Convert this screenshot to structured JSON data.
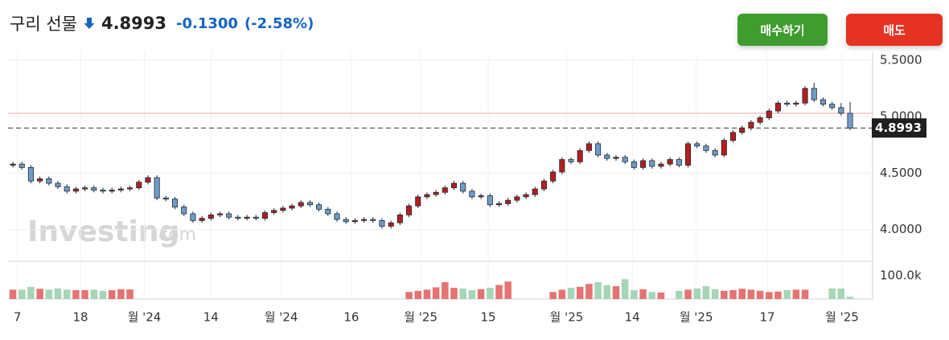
{
  "header": {
    "title": "구리 선물",
    "change": "-0.1300",
    "change_pct": "(-2.58%)",
    "buy_button": "매수하기",
    "sell_button": "매도"
  },
  "watermark": {
    "brand": "Investing",
    "suffix": ".com"
  },
  "chart_data": {
    "type": "candlestick",
    "last_price": 4.8993,
    "prev_close": 5.0293,
    "up_color": "#b71c1c",
    "down_color": "#6f9cc7",
    "outline_color": "#1c2a38",
    "volume_up_color": "#a5d6b5",
    "volume_down_color": "#e57373",
    "open": [
      4.57,
      4.58,
      4.55,
      4.43,
      4.45,
      4.41,
      4.38,
      4.34,
      4.36,
      4.37,
      4.35,
      4.34,
      4.35,
      4.36,
      4.37,
      4.42,
      4.46,
      4.28,
      4.27,
      4.2,
      4.14,
      4.08,
      4.1,
      4.13,
      4.14,
      4.11,
      4.1,
      4.11,
      4.1,
      4.15,
      4.17,
      4.19,
      4.21,
      4.24,
      4.22,
      4.18,
      4.14,
      4.09,
      4.07,
      4.08,
      4.09,
      4.08,
      4.03,
      4.06,
      4.13,
      4.21,
      4.29,
      4.31,
      4.33,
      4.37,
      4.41,
      4.34,
      4.29,
      4.3,
      4.22,
      4.23,
      4.26,
      4.29,
      4.31,
      4.36,
      4.43,
      4.51,
      4.62,
      4.6,
      4.7,
      4.76,
      4.66,
      4.63,
      4.64,
      4.6,
      4.55,
      4.61,
      4.56,
      4.58,
      4.62,
      4.57,
      4.76,
      4.74,
      4.7,
      4.66,
      4.79,
      4.86,
      4.9,
      4.95,
      4.99,
      5.05,
      5.12,
      5.11,
      5.12,
      5.25,
      5.15,
      5.11,
      5.08,
      5.03
    ],
    "high": [
      4.6,
      4.6,
      4.57,
      4.47,
      4.47,
      4.43,
      4.4,
      4.38,
      4.39,
      4.39,
      4.37,
      4.37,
      4.38,
      4.39,
      4.44,
      4.48,
      4.48,
      4.3,
      4.29,
      4.22,
      4.16,
      4.12,
      4.15,
      4.16,
      4.16,
      4.13,
      4.13,
      4.13,
      4.17,
      4.19,
      4.21,
      4.23,
      4.26,
      4.26,
      4.24,
      4.2,
      4.16,
      4.11,
      4.1,
      4.11,
      4.11,
      4.1,
      4.08,
      4.15,
      4.23,
      4.31,
      4.33,
      4.35,
      4.39,
      4.43,
      4.43,
      4.36,
      4.32,
      4.32,
      4.25,
      4.28,
      4.31,
      4.33,
      4.38,
      4.45,
      4.53,
      4.64,
      4.64,
      4.72,
      4.78,
      4.78,
      4.68,
      4.66,
      4.66,
      4.62,
      4.63,
      4.63,
      4.6,
      4.64,
      4.64,
      4.78,
      4.78,
      4.76,
      4.72,
      4.81,
      4.88,
      4.92,
      4.97,
      5.01,
      5.07,
      5.14,
      5.14,
      5.14,
      5.27,
      5.3,
      5.17,
      5.13,
      5.12,
      5.13
    ],
    "low": [
      4.55,
      4.53,
      4.41,
      4.41,
      4.39,
      4.36,
      4.32,
      4.32,
      4.34,
      4.33,
      4.32,
      4.32,
      4.33,
      4.34,
      4.35,
      4.4,
      4.26,
      4.25,
      4.18,
      4.12,
      4.06,
      4.06,
      4.08,
      4.11,
      4.09,
      4.08,
      4.08,
      4.08,
      4.08,
      4.13,
      4.15,
      4.17,
      4.19,
      4.2,
      4.16,
      4.12,
      4.07,
      4.05,
      4.05,
      4.06,
      4.06,
      4.01,
      4.01,
      4.04,
      4.11,
      4.19,
      4.27,
      4.29,
      4.31,
      4.35,
      4.32,
      4.27,
      4.27,
      4.2,
      4.2,
      4.21,
      4.24,
      4.27,
      4.29,
      4.34,
      4.41,
      4.49,
      4.58,
      4.58,
      4.68,
      4.64,
      4.61,
      4.61,
      4.58,
      4.53,
      4.53,
      4.54,
      4.54,
      4.56,
      4.55,
      4.55,
      4.72,
      4.68,
      4.64,
      4.64,
      4.77,
      4.84,
      4.88,
      4.93,
      4.97,
      5.03,
      5.09,
      5.09,
      5.1,
      5.13,
      5.09,
      5.06,
      5.01,
      4.88
    ],
    "close": [
      4.58,
      4.55,
      4.43,
      4.45,
      4.41,
      4.38,
      4.34,
      4.36,
      4.37,
      4.35,
      4.34,
      4.35,
      4.36,
      4.37,
      4.42,
      4.46,
      4.28,
      4.27,
      4.2,
      4.14,
      4.08,
      4.1,
      4.13,
      4.14,
      4.11,
      4.1,
      4.11,
      4.1,
      4.15,
      4.17,
      4.19,
      4.21,
      4.24,
      4.22,
      4.18,
      4.14,
      4.09,
      4.07,
      4.08,
      4.09,
      4.08,
      4.03,
      4.06,
      4.13,
      4.21,
      4.29,
      4.31,
      4.33,
      4.37,
      4.41,
      4.34,
      4.29,
      4.3,
      4.22,
      4.23,
      4.26,
      4.29,
      4.31,
      4.36,
      4.43,
      4.51,
      4.62,
      4.6,
      4.7,
      4.76,
      4.66,
      4.63,
      4.64,
      4.6,
      4.55,
      4.61,
      4.56,
      4.58,
      4.62,
      4.57,
      4.76,
      4.74,
      4.7,
      4.66,
      4.79,
      4.86,
      4.9,
      4.95,
      4.99,
      5.05,
      5.12,
      5.11,
      5.12,
      5.25,
      5.15,
      5.11,
      5.08,
      5.03,
      4.8993
    ],
    "volume": [
      40000,
      40000,
      52000,
      44000,
      40000,
      45000,
      40000,
      38000,
      38000,
      40000,
      35000,
      38000,
      42000,
      41000,
      null,
      null,
      null,
      null,
      null,
      null,
      null,
      null,
      null,
      null,
      null,
      null,
      null,
      null,
      null,
      null,
      null,
      null,
      null,
      null,
      null,
      null,
      null,
      null,
      null,
      null,
      null,
      null,
      null,
      null,
      30000,
      35000,
      40000,
      50000,
      72000,
      48000,
      45000,
      38000,
      42000,
      48000,
      60000,
      75000,
      null,
      null,
      null,
      null,
      30000,
      40000,
      48000,
      52000,
      65000,
      72000,
      60000,
      55000,
      85000,
      38000,
      42000,
      30000,
      28000,
      null,
      35000,
      40000,
      45000,
      55000,
      42000,
      35000,
      38000,
      44000,
      40000,
      35000,
      30000,
      32000,
      38000,
      40000,
      40000,
      null,
      null,
      45000,
      45000,
      10000
    ],
    "xlim": [
      -0.54,
      95.5
    ],
    "xticks": [
      {
        "value": 0.5,
        "label": "7"
      },
      {
        "value": 7.5,
        "label": "18"
      },
      {
        "value": 14.6,
        "label": "월 '24"
      },
      {
        "value": 22,
        "label": "14"
      },
      {
        "value": 29.8,
        "label": "월 '24"
      },
      {
        "value": 37.6,
        "label": "16"
      },
      {
        "value": 45.3,
        "label": "월 '25"
      },
      {
        "value": 52.8,
        "label": "15"
      },
      {
        "value": 61.5,
        "label": "월 '25"
      },
      {
        "value": 68.8,
        "label": "14"
      },
      {
        "value": 75.9,
        "label": "월 '25"
      },
      {
        "value": 83.8,
        "label": "17"
      },
      {
        "value": 92.1,
        "label": "월 '25"
      }
    ],
    "ylim": [
      3.72,
      5.57
    ],
    "yticks": [
      {
        "value": 4.0,
        "label": "4.0000"
      },
      {
        "value": 4.5,
        "label": "4.5000"
      },
      {
        "value": 5.0,
        "label": "5.0000"
      },
      {
        "value": 5.5,
        "label": "5.5000"
      }
    ],
    "volume_ylim": [
      0,
      162000
    ],
    "volume_yticks": [
      {
        "value": 100000,
        "label": "100.0k"
      }
    ],
    "grid": true
  }
}
